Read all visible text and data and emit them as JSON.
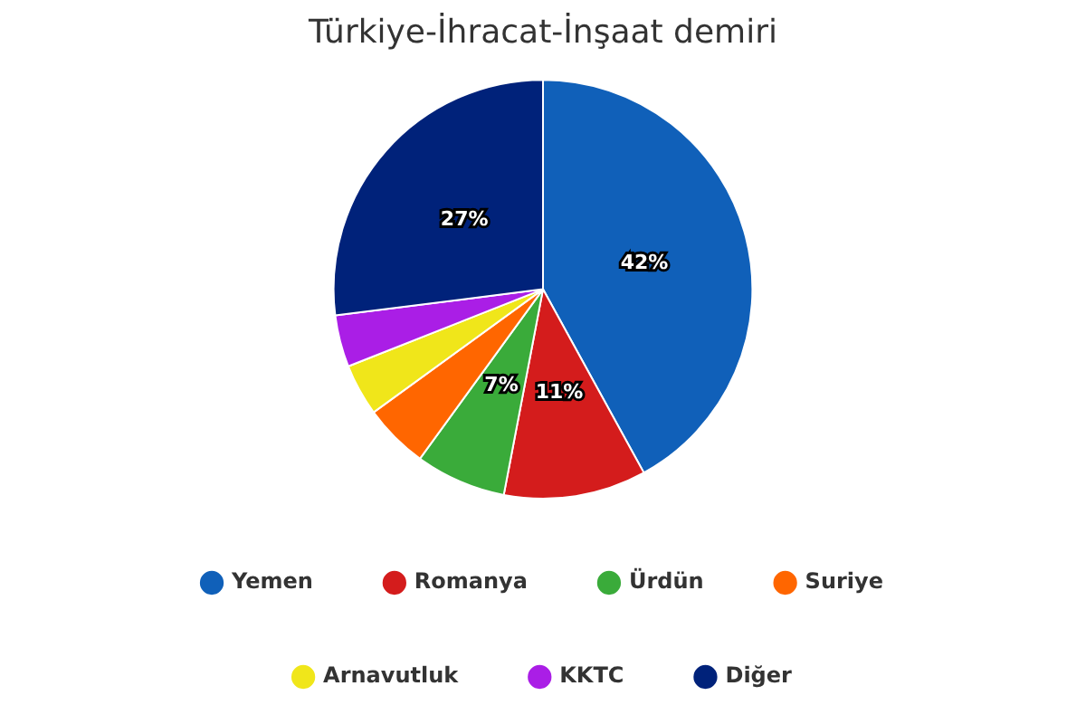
{
  "chart_data": {
    "type": "pie",
    "title": "Türkiye-İhracat-İnşaat demiri",
    "categories": [
      "Yemen",
      "Romanya",
      "Ürdün",
      "Suriye",
      "Arnavutluk",
      "KKTC",
      "Diğer"
    ],
    "values": [
      42,
      11,
      7,
      5,
      4,
      4,
      27
    ],
    "colors": [
      "#1060b9",
      "#d41c1c",
      "#3aab3a",
      "#ff6600",
      "#f0e61a",
      "#aa1ee6",
      "#00227a"
    ],
    "value_labels": [
      "42%",
      "11%",
      "7%",
      null,
      null,
      null,
      "27%"
    ],
    "legend": "bottom"
  }
}
